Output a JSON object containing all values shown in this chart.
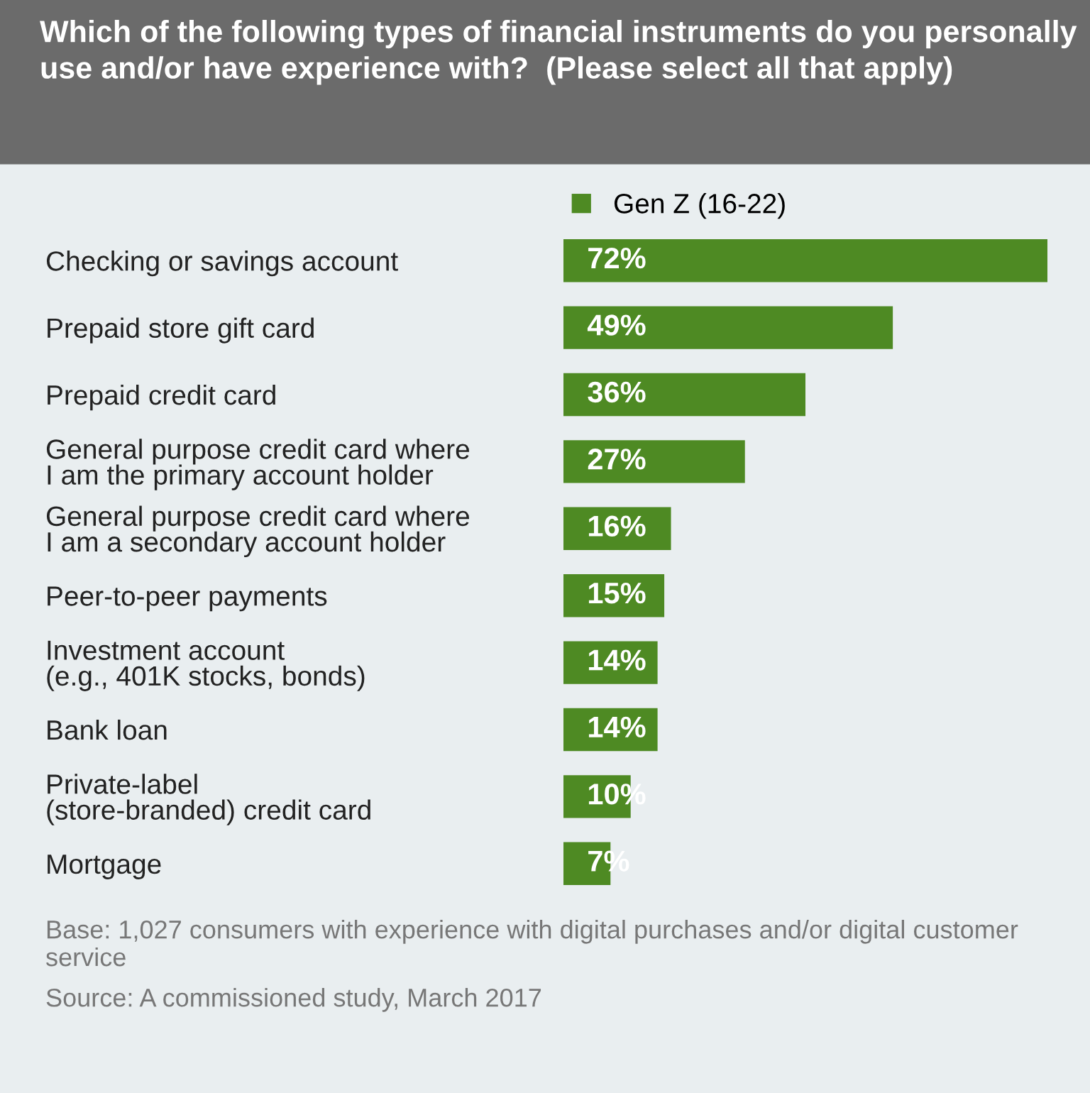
{
  "chart_data": {
    "type": "bar",
    "orientation": "horizontal",
    "title": "Which of the following types of financial instruments do you personally use and/or have experience with?  (Please select all that apply)",
    "categories": [
      "Checking or savings account",
      "Prepaid store gift card",
      "Prepaid credit card",
      "General purpose credit card where\nI am the primary account holder",
      "General purpose credit card where\nI am a secondary account holder",
      "Peer-to-peer payments",
      "Investment account\n(e.g., 401K stocks, bonds)",
      "Bank loan",
      "Private-label\n(store-branded) credit card",
      "Mortgage"
    ],
    "series": [
      {
        "name": "Gen Z (16-22)",
        "color": "#4e8a23",
        "values": [
          72,
          49,
          36,
          27,
          16,
          15,
          14,
          14,
          10,
          7
        ],
        "value_labels": [
          "72%",
          "49%",
          "36%",
          "27%",
          "16%",
          "15%",
          "14%",
          "14%",
          "10%",
          "7%"
        ]
      }
    ],
    "legend": "top",
    "annotations": [
      "Base: 1,027 consumers with experience with digital purchases and/or digital customer service",
      "Source: A commissioned study, March 2017"
    ]
  }
}
